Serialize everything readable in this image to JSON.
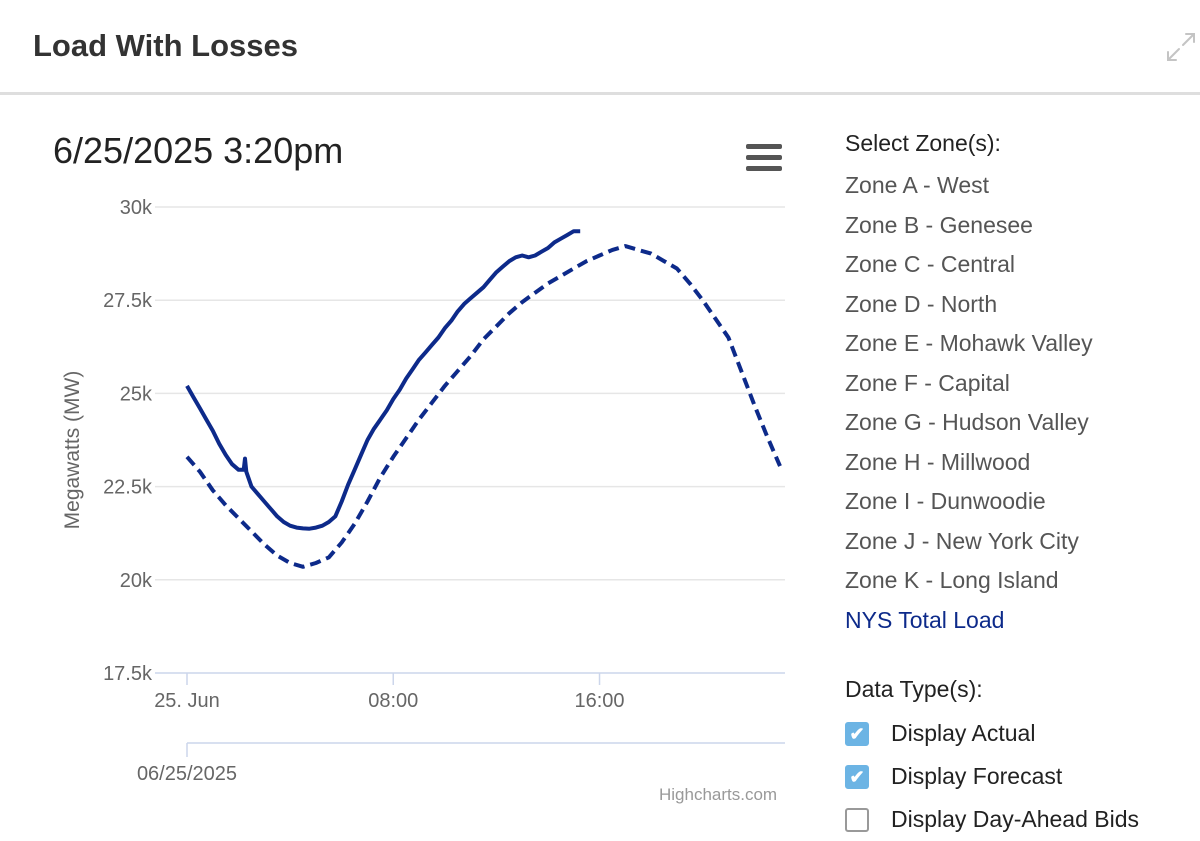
{
  "header": {
    "title": "Load With Losses",
    "expand_icon": "expand-arrows-icon"
  },
  "chart": {
    "menu_icon": "hamburger-menu-icon",
    "credits": "Highcharts.com"
  },
  "panel": {
    "zones_heading": "Select Zone(s):",
    "zones": [
      {
        "label": "Zone A - West",
        "active": false
      },
      {
        "label": "Zone B - Genesee",
        "active": false
      },
      {
        "label": "Zone C - Central",
        "active": false
      },
      {
        "label": "Zone D - North",
        "active": false
      },
      {
        "label": "Zone E - Mohawk Valley",
        "active": false
      },
      {
        "label": "Zone F - Capital",
        "active": false
      },
      {
        "label": "Zone G - Hudson Valley",
        "active": false
      },
      {
        "label": "Zone H - Millwood",
        "active": false
      },
      {
        "label": "Zone I - Dunwoodie",
        "active": false
      },
      {
        "label": "Zone J - New York City",
        "active": false
      },
      {
        "label": "Zone K - Long Island",
        "active": false
      },
      {
        "label": "NYS Total Load",
        "active": true
      }
    ],
    "types_heading": "Data Type(s):",
    "types": [
      {
        "label": "Display Actual",
        "checked": true
      },
      {
        "label": "Display Forecast",
        "checked": true
      },
      {
        "label": "Display Day-Ahead Bids",
        "checked": false
      }
    ]
  },
  "colors": {
    "series": "#0d2a8a",
    "grid": "#e6e6e6",
    "axis_line": "#ccd6eb",
    "check": "#6cb4e4"
  },
  "chart_data": {
    "type": "line",
    "title": "6/25/2025 3:20pm",
    "ylabel": "Megawatts (MW)",
    "xlabel": "",
    "ylim": [
      17500,
      30000
    ],
    "yticks": [
      17500,
      20000,
      22500,
      25000,
      27500,
      30000
    ],
    "ytick_labels": [
      "17.5k",
      "20k",
      "22.5k",
      "25k",
      "27.5k",
      "30k"
    ],
    "xlim": [
      0,
      23
    ],
    "xticks": [
      0,
      8,
      16
    ],
    "xtick_labels": [
      "25. Jun",
      "08:00",
      "16:00"
    ],
    "navigator_label": "06/25/2025",
    "grid": true,
    "legend": "none",
    "series": [
      {
        "style": "solid",
        "x": [
          0,
          0.25,
          0.5,
          0.75,
          1,
          1.25,
          1.5,
          1.75,
          2,
          2.2,
          2.25,
          2.3,
          2.5,
          2.75,
          3,
          3.25,
          3.5,
          3.75,
          4,
          4.25,
          4.5,
          4.75,
          5,
          5.25,
          5.5,
          5.75,
          6,
          6.25,
          6.5,
          6.75,
          7,
          7.25,
          7.5,
          7.75,
          8,
          8.25,
          8.5,
          8.75,
          9,
          9.25,
          9.5,
          9.75,
          10,
          10.25,
          10.5,
          10.75,
          11,
          11.25,
          11.5,
          11.75,
          12,
          12.25,
          12.5,
          12.75,
          13,
          13.25,
          13.5,
          13.75,
          14,
          14.25,
          14.5,
          14.75,
          15,
          15.25
        ],
        "y": [
          25200,
          24900,
          24600,
          24300,
          24000,
          23650,
          23350,
          23100,
          22950,
          22950,
          23250,
          22900,
          22500,
          22300,
          22100,
          21900,
          21700,
          21550,
          21450,
          21400,
          21380,
          21370,
          21400,
          21450,
          21550,
          21700,
          22100,
          22550,
          22950,
          23350,
          23750,
          24050,
          24300,
          24550,
          24850,
          25100,
          25400,
          25650,
          25900,
          26100,
          26300,
          26500,
          26750,
          26950,
          27200,
          27400,
          27550,
          27700,
          27850,
          28050,
          28250,
          28400,
          28550,
          28650,
          28700,
          28650,
          28700,
          28800,
          28900,
          29050,
          29150,
          29250,
          29350,
          29350
        ]
      },
      {
        "style": "dashed",
        "x": [
          0,
          0.5,
          1,
          1.5,
          2,
          2.5,
          3,
          3.5,
          4,
          4.5,
          5,
          5.5,
          6,
          6.5,
          7,
          7.5,
          8,
          8.5,
          9,
          9.5,
          10,
          10.5,
          11,
          11.5,
          12,
          12.5,
          13,
          13.5,
          14,
          14.5,
          15,
          15.5,
          16,
          16.5,
          17,
          17.5,
          18,
          18.5,
          19,
          19.5,
          20,
          20.5,
          21,
          21.5,
          22,
          22.5,
          23
        ],
        "y": [
          23300,
          22900,
          22400,
          22000,
          21650,
          21300,
          20950,
          20650,
          20450,
          20350,
          20450,
          20600,
          21000,
          21500,
          22100,
          22750,
          23300,
          23800,
          24300,
          24750,
          25200,
          25600,
          26000,
          26450,
          26800,
          27150,
          27450,
          27700,
          27950,
          28150,
          28350,
          28550,
          28700,
          28850,
          28950,
          28850,
          28750,
          28550,
          28350,
          27950,
          27500,
          27000,
          26500,
          25600,
          24700,
          23850,
          23050
        ]
      }
    ]
  }
}
